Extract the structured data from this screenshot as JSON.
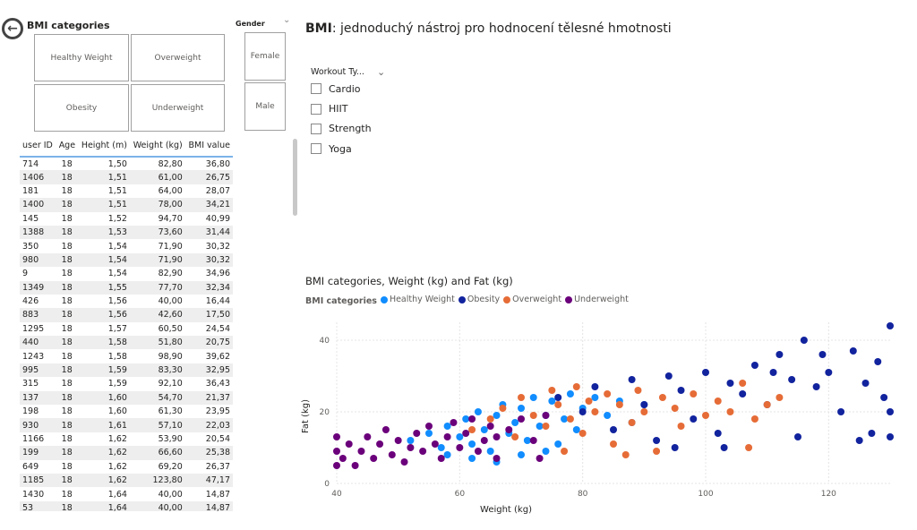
{
  "bmi_slicer": {
    "title": "BMI categories",
    "options": [
      "Healthy Weight",
      "Overweight",
      "Obesity",
      "Underweight"
    ]
  },
  "gender_slicer": {
    "title": "Gender",
    "options": [
      "Female",
      "Male"
    ]
  },
  "table": {
    "columns": [
      "user ID",
      "Age",
      "Height (m)",
      "Weight (kg)",
      "BMI value"
    ],
    "rows": [
      [
        "714",
        "18",
        "1,50",
        "82,80",
        "36,80"
      ],
      [
        "1406",
        "18",
        "1,51",
        "61,00",
        "26,75"
      ],
      [
        "181",
        "18",
        "1,51",
        "64,00",
        "28,07"
      ],
      [
        "1400",
        "18",
        "1,51",
        "78,00",
        "34,21"
      ],
      [
        "145",
        "18",
        "1,52",
        "94,70",
        "40,99"
      ],
      [
        "1388",
        "18",
        "1,53",
        "73,60",
        "31,44"
      ],
      [
        "350",
        "18",
        "1,54",
        "71,90",
        "30,32"
      ],
      [
        "980",
        "18",
        "1,54",
        "71,90",
        "30,32"
      ],
      [
        "9",
        "18",
        "1,54",
        "82,90",
        "34,96"
      ],
      [
        "1349",
        "18",
        "1,55",
        "77,70",
        "32,34"
      ],
      [
        "426",
        "18",
        "1,56",
        "40,00",
        "16,44"
      ],
      [
        "883",
        "18",
        "1,56",
        "42,60",
        "17,50"
      ],
      [
        "1295",
        "18",
        "1,57",
        "60,50",
        "24,54"
      ],
      [
        "440",
        "18",
        "1,58",
        "51,80",
        "20,75"
      ],
      [
        "1243",
        "18",
        "1,58",
        "98,90",
        "39,62"
      ],
      [
        "995",
        "18",
        "1,59",
        "83,30",
        "32,95"
      ],
      [
        "315",
        "18",
        "1,59",
        "92,10",
        "36,43"
      ],
      [
        "137",
        "18",
        "1,60",
        "54,70",
        "21,37"
      ],
      [
        "198",
        "18",
        "1,60",
        "61,30",
        "23,95"
      ],
      [
        "930",
        "18",
        "1,61",
        "57,10",
        "22,03"
      ],
      [
        "1166",
        "18",
        "1,62",
        "53,90",
        "20,54"
      ],
      [
        "199",
        "18",
        "1,62",
        "66,60",
        "25,38"
      ],
      [
        "649",
        "18",
        "1,62",
        "69,20",
        "26,37"
      ],
      [
        "1185",
        "18",
        "1,62",
        "123,80",
        "47,17"
      ],
      [
        "1430",
        "18",
        "1,64",
        "40,00",
        "14,87"
      ],
      [
        "53",
        "18",
        "1,64",
        "40,00",
        "14,87"
      ]
    ]
  },
  "header": {
    "title_bold": "BMI",
    "title_rest": ": jednoduchý nástroj pro hodnocení tělesné hmotnosti"
  },
  "workout_slicer": {
    "title": "Workout Ty...",
    "options": [
      "Cardio",
      "HIIT",
      "Strength",
      "Yoga"
    ]
  },
  "chart_data": {
    "type": "scatter",
    "title": "BMI categories, Weight (kg) and Fat (kg)",
    "legend_title": "BMI categories",
    "legend_position": "top-left",
    "xlabel": "Weight (kg)",
    "ylabel": "Fat (kg)",
    "xlim": [
      40,
      130
    ],
    "ylim": [
      0,
      45
    ],
    "xticks": [
      40,
      60,
      80,
      100,
      120
    ],
    "yticks": [
      0,
      20,
      40
    ],
    "grid": true,
    "series": [
      {
        "name": "Healthy Weight",
        "color": "#118dff",
        "points": [
          [
            52,
            12
          ],
          [
            55,
            14
          ],
          [
            57,
            10
          ],
          [
            58,
            16
          ],
          [
            60,
            13
          ],
          [
            61,
            18
          ],
          [
            62,
            11
          ],
          [
            63,
            20
          ],
          [
            64,
            15
          ],
          [
            65,
            9
          ],
          [
            66,
            19
          ],
          [
            67,
            22
          ],
          [
            68,
            14
          ],
          [
            69,
            17
          ],
          [
            70,
            21
          ],
          [
            71,
            12
          ],
          [
            72,
            24
          ],
          [
            73,
            16
          ],
          [
            74,
            19
          ],
          [
            75,
            23
          ],
          [
            76,
            11
          ],
          [
            77,
            18
          ],
          [
            78,
            25
          ],
          [
            79,
            15
          ],
          [
            80,
            21
          ],
          [
            82,
            24
          ],
          [
            84,
            19
          ],
          [
            86,
            23
          ],
          [
            88,
            17
          ],
          [
            90,
            22
          ],
          [
            58,
            8
          ],
          [
            62,
            7
          ],
          [
            66,
            6
          ],
          [
            70,
            8
          ],
          [
            74,
            9
          ]
        ]
      },
      {
        "name": "Obesity",
        "color": "#12239e",
        "points": [
          [
            76,
            24
          ],
          [
            80,
            20
          ],
          [
            82,
            27
          ],
          [
            85,
            15
          ],
          [
            88,
            29
          ],
          [
            90,
            22
          ],
          [
            92,
            12
          ],
          [
            94,
            30
          ],
          [
            96,
            26
          ],
          [
            98,
            18
          ],
          [
            100,
            31
          ],
          [
            102,
            14
          ],
          [
            104,
            28
          ],
          [
            106,
            25
          ],
          [
            108,
            33
          ],
          [
            110,
            22
          ],
          [
            112,
            36
          ],
          [
            114,
            29
          ],
          [
            115,
            13
          ],
          [
            116,
            40
          ],
          [
            118,
            27
          ],
          [
            120,
            31
          ],
          [
            122,
            20
          ],
          [
            124,
            37
          ],
          [
            125,
            12
          ],
          [
            126,
            28
          ],
          [
            128,
            34
          ],
          [
            129,
            24
          ],
          [
            130,
            44
          ],
          [
            130,
            20
          ],
          [
            130,
            13
          ],
          [
            127,
            14
          ],
          [
            119,
            36
          ],
          [
            111,
            31
          ],
          [
            103,
            10
          ],
          [
            95,
            10
          ]
        ]
      },
      {
        "name": "Overweight",
        "color": "#e66c37",
        "points": [
          [
            62,
            15
          ],
          [
            65,
            18
          ],
          [
            67,
            21
          ],
          [
            69,
            13
          ],
          [
            70,
            24
          ],
          [
            72,
            19
          ],
          [
            74,
            16
          ],
          [
            75,
            26
          ],
          [
            76,
            22
          ],
          [
            78,
            18
          ],
          [
            79,
            27
          ],
          [
            80,
            14
          ],
          [
            81,
            23
          ],
          [
            82,
            20
          ],
          [
            84,
            25
          ],
          [
            85,
            11
          ],
          [
            86,
            22
          ],
          [
            88,
            17
          ],
          [
            89,
            26
          ],
          [
            90,
            20
          ],
          [
            92,
            9
          ],
          [
            93,
            24
          ],
          [
            95,
            21
          ],
          [
            96,
            16
          ],
          [
            98,
            25
          ],
          [
            100,
            19
          ],
          [
            102,
            23
          ],
          [
            104,
            20
          ],
          [
            106,
            28
          ],
          [
            108,
            18
          ],
          [
            110,
            22
          ],
          [
            112,
            24
          ],
          [
            107,
            10
          ],
          [
            87,
            8
          ],
          [
            77,
            9
          ]
        ]
      },
      {
        "name": "Underweight",
        "color": "#6b007b",
        "points": [
          [
            40,
            5
          ],
          [
            40,
            9
          ],
          [
            40,
            13
          ],
          [
            41,
            7
          ],
          [
            42,
            11
          ],
          [
            43,
            5
          ],
          [
            44,
            9
          ],
          [
            45,
            13
          ],
          [
            46,
            7
          ],
          [
            47,
            11
          ],
          [
            48,
            15
          ],
          [
            49,
            8
          ],
          [
            50,
            12
          ],
          [
            51,
            6
          ],
          [
            52,
            10
          ],
          [
            53,
            14
          ],
          [
            54,
            9
          ],
          [
            55,
            16
          ],
          [
            56,
            11
          ],
          [
            57,
            7
          ],
          [
            58,
            13
          ],
          [
            59,
            17
          ],
          [
            60,
            10
          ],
          [
            61,
            14
          ],
          [
            62,
            18
          ],
          [
            63,
            9
          ],
          [
            64,
            12
          ],
          [
            65,
            16
          ],
          [
            66,
            13
          ],
          [
            68,
            15
          ],
          [
            70,
            18
          ],
          [
            72,
            12
          ],
          [
            74,
            19
          ],
          [
            66,
            7
          ],
          [
            73,
            7
          ]
        ]
      }
    ]
  }
}
